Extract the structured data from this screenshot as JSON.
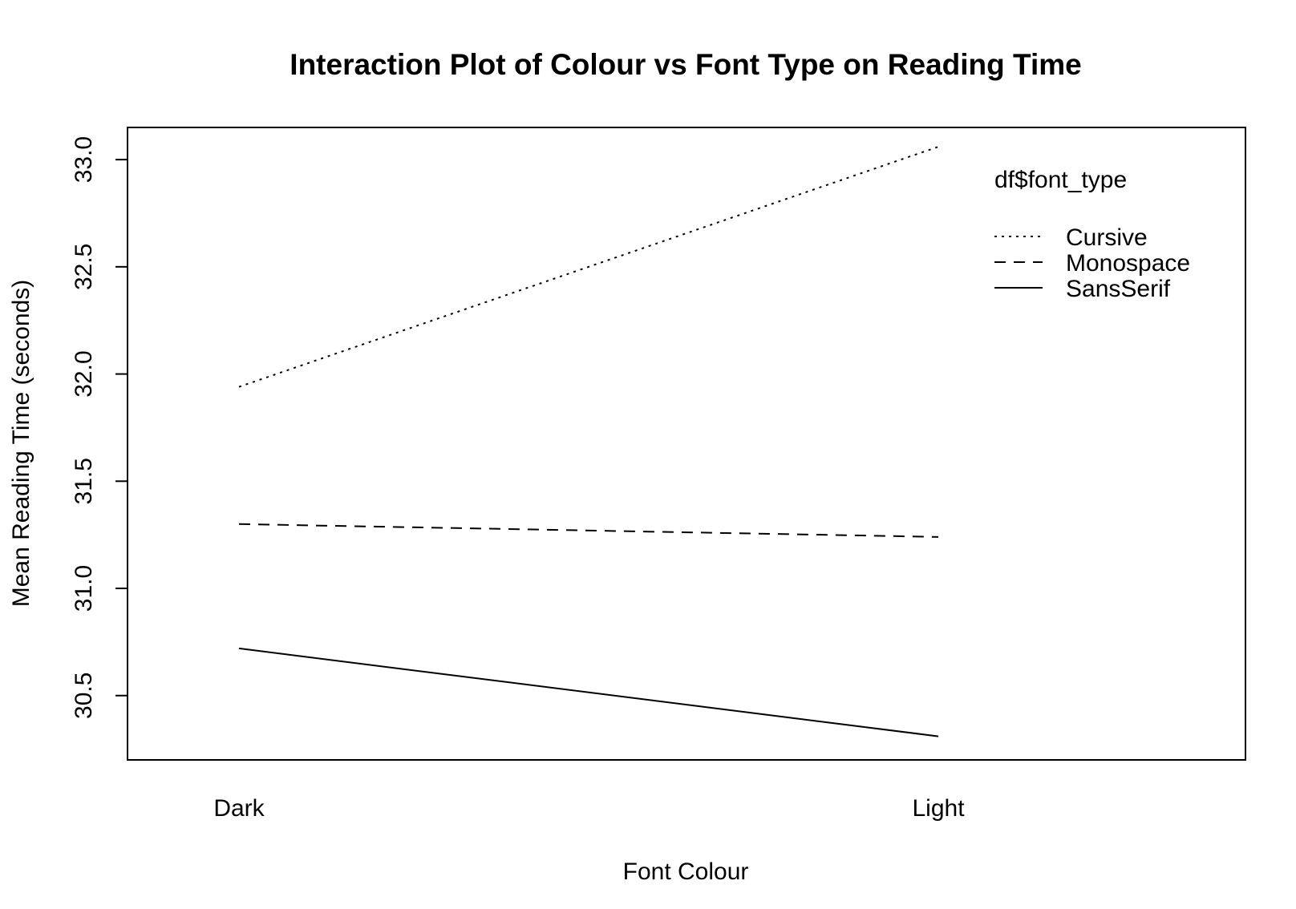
{
  "chart_data": {
    "type": "line",
    "title": "Interaction Plot of Colour vs Font Type on Reading Time",
    "xlabel": "Font Colour",
    "ylabel": "Mean Reading Time (seconds)",
    "categories": [
      "Dark",
      "Light"
    ],
    "ylim": [
      30.2,
      33.15
    ],
    "yticks": [
      30.5,
      31.0,
      31.5,
      32.0,
      32.5,
      33.0
    ],
    "ytick_labels": [
      "30.5",
      "31.0",
      "31.5",
      "32.0",
      "32.5",
      "33.0"
    ],
    "grid": false,
    "legend": {
      "title": "df$font_type",
      "placement": "top-right"
    },
    "series": [
      {
        "name": "Cursive",
        "values": [
          31.94,
          33.06
        ],
        "line_style": "dotted"
      },
      {
        "name": "Monospace",
        "values": [
          31.3,
          31.24
        ],
        "line_style": "dashed"
      },
      {
        "name": "SansSerif",
        "values": [
          30.72,
          30.31
        ],
        "line_style": "solid"
      }
    ]
  }
}
